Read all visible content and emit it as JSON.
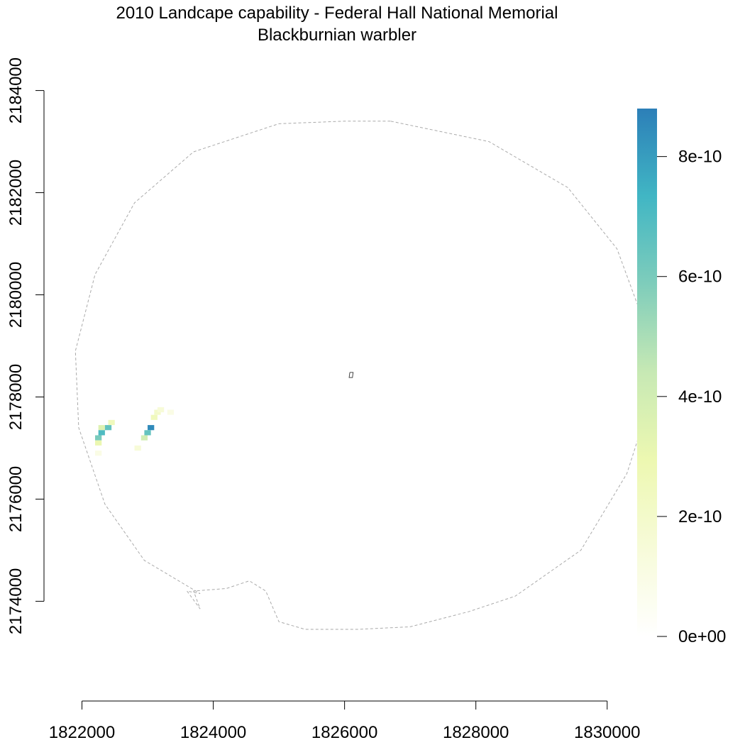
{
  "chart_data": {
    "type": "heatmap",
    "title": "2010 Landcape capability - Federal Hall National Memorial",
    "subtitle": "Blackburnian warbler",
    "xlabel": "",
    "ylabel": "",
    "xlim": [
      1821400,
      1830100
    ],
    "ylim": [
      2173200,
      2184800
    ],
    "x_ticks": [
      1822000,
      1824000,
      1826000,
      1828000,
      1830000
    ],
    "x_tick_labels": [
      "1822000",
      "1824000",
      "1826000",
      "1828000",
      "1830000"
    ],
    "y_ticks": [
      2174000,
      2176000,
      2178000,
      2180000,
      2182000,
      2184000
    ],
    "y_tick_labels": [
      "2174000",
      "2176000",
      "2178000",
      "2180000",
      "2182000",
      "2184000"
    ],
    "legend": {
      "placement": "right",
      "min": 0,
      "max": 8.8e-10,
      "ticks": [
        0,
        2e-10,
        4e-10,
        6e-10,
        8e-10
      ],
      "tick_labels": [
        "0e+00",
        "2e-10",
        "4e-10",
        "6e-10",
        "8e-10"
      ],
      "colors": [
        "#ffffff",
        "#f7fbd9",
        "#edf8b1",
        "#c7e9b4",
        "#7fcdbb",
        "#41b6c4",
        "#2c7fb8"
      ]
    },
    "boundary": [
      [
        1826700,
        2183400
      ],
      [
        1826000,
        2183400
      ],
      [
        1825000,
        2183350
      ],
      [
        1823700,
        2182800
      ],
      [
        1822800,
        2181800
      ],
      [
        1822200,
        2180400
      ],
      [
        1821900,
        2178900
      ],
      [
        1821950,
        2177400
      ],
      [
        1822350,
        2175900
      ],
      [
        1822950,
        2174800
      ],
      [
        1823800,
        2174150
      ],
      [
        1823600,
        2174200
      ],
      [
        1823800,
        2173850
      ],
      [
        1823700,
        2174200
      ],
      [
        1824200,
        2174250
      ],
      [
        1824550,
        2174400
      ],
      [
        1824800,
        2174200
      ],
      [
        1825000,
        2173600
      ],
      [
        1825400,
        2173450
      ],
      [
        1826200,
        2173450
      ],
      [
        1827000,
        2173500
      ],
      [
        1827900,
        2173800
      ],
      [
        1828600,
        2174100
      ],
      [
        1829600,
        2175000
      ],
      [
        1830300,
        2176500
      ],
      [
        1830650,
        2177900
      ],
      [
        1830550,
        2179500
      ],
      [
        1830150,
        2180900
      ],
      [
        1829400,
        2182100
      ],
      [
        1828200,
        2183000
      ],
      [
        1826700,
        2183400
      ]
    ],
    "park_marker": [
      [
        1826080,
        2178480
      ],
      [
        1826130,
        2178480
      ],
      [
        1826120,
        2178380
      ],
      [
        1826070,
        2178380
      ],
      [
        1826080,
        2178480
      ]
    ],
    "cells": [
      [
        1822300,
        2177400,
        3.5e-10
      ],
      [
        1822400,
        2177400,
        6.5e-10
      ],
      [
        1822300,
        2177300,
        7e-10
      ],
      [
        1822250,
        2177200,
        6e-10
      ],
      [
        1822250,
        2177100,
        3e-10
      ],
      [
        1822250,
        2176900,
        1e-10
      ],
      [
        1822450,
        2177500,
        2.5e-10
      ],
      [
        1823050,
        2177400,
        8.5e-10
      ],
      [
        1823000,
        2177300,
        6.5e-10
      ],
      [
        1822950,
        2177200,
        4e-10
      ],
      [
        1823100,
        2177600,
        2.5e-10
      ],
      [
        1823150,
        2177700,
        2e-10
      ],
      [
        1823200,
        2177750,
        1.5e-10
      ],
      [
        1823350,
        2177700,
        1e-10
      ],
      [
        1822850,
        2177000,
        1.5e-10
      ]
    ]
  }
}
